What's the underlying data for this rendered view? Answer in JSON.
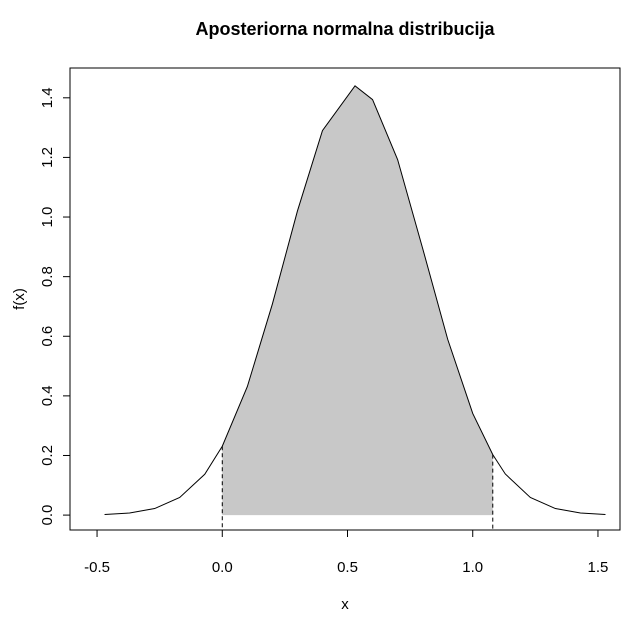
{
  "chart_data": {
    "type": "line",
    "title": "Aposteriorna normalna distribucija",
    "x_label": "x",
    "y_label": "f(x)",
    "x": [
      -0.47,
      -0.37,
      -0.27,
      -0.17,
      -0.07,
      0,
      0.1,
      0.2,
      0.3,
      0.4,
      0.53,
      0.6,
      0.7,
      0.8,
      0.9,
      1.0,
      1.08,
      1.13,
      1.23,
      1.33,
      1.43,
      1.53
    ],
    "series": [
      {
        "color": "#000000",
        "values": [
          0.002,
          0.007,
          0.022,
          0.059,
          0.137,
          0.231,
          0.431,
          0.708,
          1.02,
          1.29,
          1.44,
          1.394,
          1.193,
          0.895,
          0.59,
          0.341,
          0.203,
          0.138,
          0.059,
          0.022,
          0.007,
          0.002
        ]
      }
    ],
    "shade_from": 0,
    "shade_to": 1.08,
    "shade_color": "#c8c8c8",
    "xlim": [
      -0.608,
      1.588
    ],
    "ylim": [
      -0.05,
      1.5
    ],
    "xticks": [
      -0.5,
      {
        "value": 0,
        "label": "0.0"
      },
      0.5,
      {
        "value": 1,
        "label": "1.0"
      },
      1.5
    ],
    "yticks": [
      {
        "value": 0,
        "label": "0.0"
      },
      0.2,
      0.4,
      0.6,
      0.8,
      {
        "value": 1,
        "label": "1.0"
      },
      1.2,
      1.4
    ]
  }
}
